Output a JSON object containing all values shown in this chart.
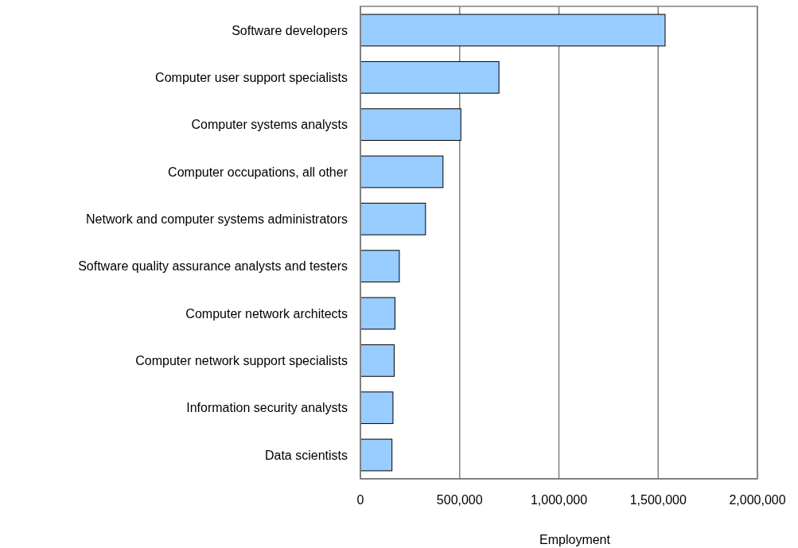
{
  "chart_data": {
    "type": "bar",
    "orientation": "horizontal",
    "xlabel": "Employment",
    "categories": [
      "Software developers",
      "Computer user support specialists",
      "Computer systems analysts",
      "Computer occupations, all other",
      "Network and computer systems administrators",
      "Software quality assurance analysts and testers",
      "Computer network architects",
      "Computer network support specialists",
      "Information security analysts",
      "Data scientists"
    ],
    "values": [
      1535000,
      698000,
      506000,
      416000,
      328000,
      196000,
      174000,
      170000,
      164000,
      159000
    ],
    "color": "#99ccff",
    "xlim": [
      0,
      2000000
    ],
    "xticks": [
      0,
      {
        "value": 500000,
        "label": "500,000"
      },
      {
        "value": 1000000,
        "label": "1,000,000"
      },
      {
        "value": 1500000,
        "label": "1,500,000"
      },
      {
        "value": 2000000,
        "label": "2,000,000"
      }
    ],
    "grid": "x"
  }
}
